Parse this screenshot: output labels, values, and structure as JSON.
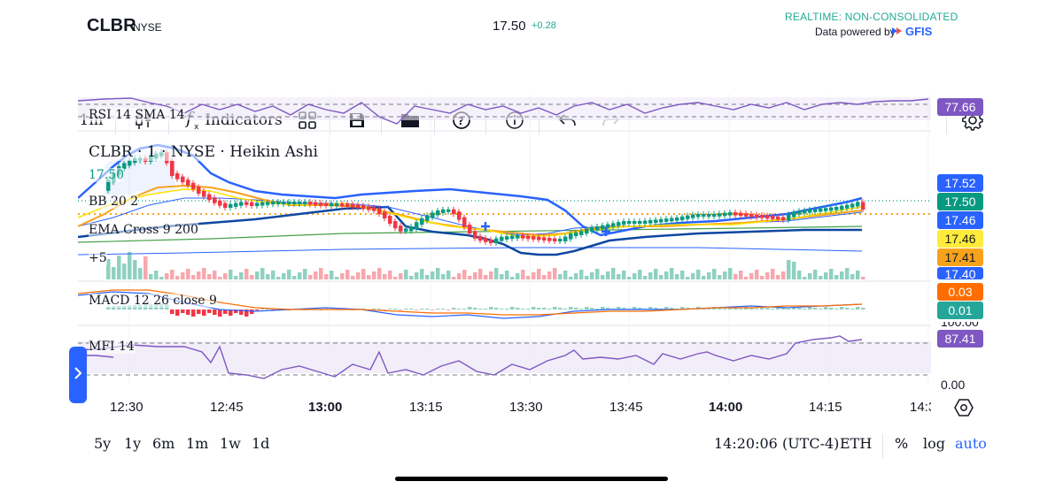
{
  "header": {
    "symbol": "CLBR",
    "exchange": "NYSE",
    "price": "17.50",
    "change": "+0.28",
    "realtime": "REALTIME: NON-CONSOLIDATED",
    "powered_by": "Data powered by",
    "provider": "GFIS"
  },
  "toolbar": {
    "interval": "1m",
    "indicators": "Indicators",
    "icons": [
      "candles-icon",
      "function-icon",
      "layout-grid-icon",
      "save-icon",
      "folder-icon",
      "help-icon",
      "info-icon",
      "undo-icon",
      "redo-icon",
      "settings-icon"
    ]
  },
  "panes": {
    "rsi": {
      "label": "RSI 14 SMA 14",
      "value": "77.66",
      "color": "#7e57c2"
    },
    "main": {
      "title": "CLBR · 1 · NYSE · Heikin Ashi",
      "last": "17.50",
      "bb": "BB 20 2",
      "ema": "EMA Cross 9 200",
      "more": "+5"
    },
    "macd": {
      "label": "MACD 12 26 close 9",
      "values": [
        "0.03",
        "0.01"
      ]
    },
    "mfi": {
      "label": "MFI 14",
      "value": "87.41",
      "zero": "0.00",
      "partial_top": "100.00"
    }
  },
  "price_axis": [
    {
      "value": "17.52",
      "color": "#2962ff"
    },
    {
      "value": "17.50",
      "color": "#089981"
    },
    {
      "value": "17.46",
      "color": "#2962ff"
    },
    {
      "value": "17.46",
      "color": "#ffeb3b",
      "text_color": "#131722"
    },
    {
      "value": "17.41",
      "color": "#f7a21b",
      "text_color": "#131722"
    },
    {
      "value": "17.40",
      "color": "#2962ff"
    }
  ],
  "macd_axis": [
    {
      "value": "0.03",
      "color": "#ff6d00"
    },
    {
      "value": "0.01",
      "color": "#26a69a"
    }
  ],
  "time_axis": [
    {
      "label": "12:30",
      "bold": false
    },
    {
      "label": "12:45",
      "bold": false
    },
    {
      "label": "13:00",
      "bold": true
    },
    {
      "label": "13:15",
      "bold": false
    },
    {
      "label": "13:30",
      "bold": false
    },
    {
      "label": "13:45",
      "bold": false
    },
    {
      "label": "14:00",
      "bold": true
    },
    {
      "label": "14:15",
      "bold": false
    },
    {
      "label": "14:3",
      "bold": false
    }
  ],
  "bottom_bar": {
    "ranges": [
      "5y",
      "1y",
      "6m",
      "1m",
      "1w",
      "1d"
    ],
    "clock": "14:20:06 (UTC-4)",
    "session": "ETH",
    "percent": "%",
    "log": "log",
    "auto": "auto"
  }
}
